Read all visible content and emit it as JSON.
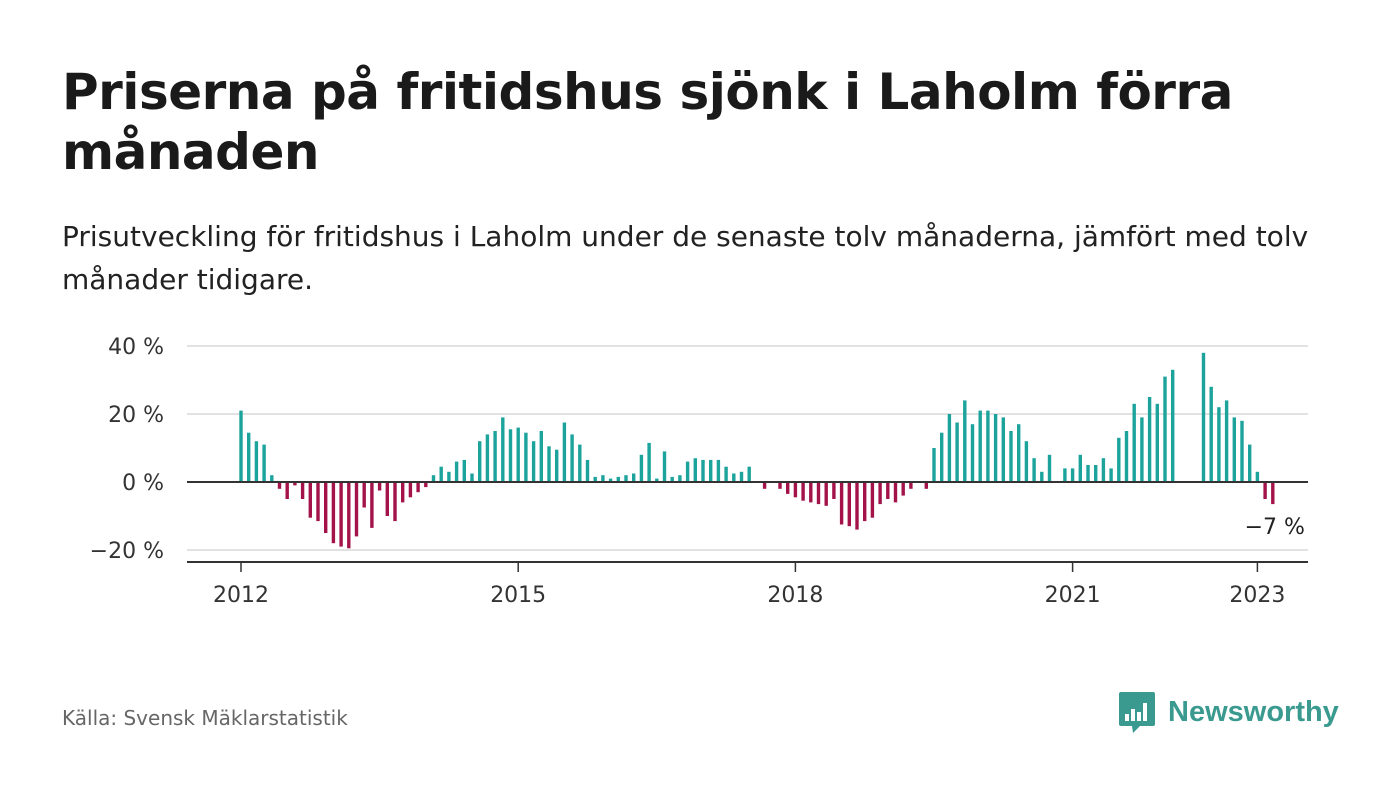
{
  "header": {
    "title": "Priserna på fritidshus sjönk i Laholm förra månaden",
    "subtitle": "Prisutveckling för fritidshus i Laholm under de senaste tolv månaderna, jämfört med tolv månader tidigare."
  },
  "footer": {
    "source": "Källa: Svensk Mäklarstatistik",
    "brand": "Newsworthy"
  },
  "colors": {
    "positive": "#1ba39c",
    "negative": "#a3134a",
    "grid": "#d9d9d9",
    "axis": "#333333",
    "brand": "#3a9a8f"
  },
  "chart_data": {
    "type": "bar",
    "ylim": [
      -23,
      40
    ],
    "yticks": [
      40,
      20,
      0,
      -20
    ],
    "ytick_labels": [
      "40 %",
      "20 %",
      "0 %",
      "−20 %"
    ],
    "xticks": [
      {
        "index": 0,
        "label": "2012"
      },
      {
        "index": 36,
        "label": "2015"
      },
      {
        "index": 72,
        "label": "2018"
      },
      {
        "index": 108,
        "label": "2021"
      },
      {
        "index": 132,
        "label": "2023"
      }
    ],
    "last_label": "−7 %",
    "grid": true,
    "legend": "none",
    "start": "2012-01",
    "values": [
      21,
      14.5,
      12,
      11,
      2,
      -2,
      -5,
      -1,
      -5,
      -10.5,
      -11.5,
      -15,
      -18,
      -19,
      -19.5,
      -16,
      -7.5,
      -13.5,
      -2.5,
      -10,
      -11.5,
      -6,
      -4.5,
      -3,
      -1.5,
      2,
      4.5,
      3,
      6,
      6.5,
      2.5,
      12,
      14,
      15,
      19,
      15.5,
      16,
      14.5,
      12,
      15,
      10.5,
      9.5,
      17.5,
      14,
      11,
      6.5,
      1.5,
      2,
      1,
      1.5,
      2,
      2.5,
      8,
      11.5,
      1,
      9,
      1.5,
      2,
      6,
      7,
      6.5,
      6.5,
      6.5,
      4.5,
      2.5,
      3,
      4.5,
      null,
      -2,
      null,
      -2,
      -3.5,
      -4.5,
      -5.5,
      -6,
      -6.5,
      -7,
      -5,
      -12.5,
      -13,
      -14,
      -11.5,
      -10.5,
      -6.5,
      -5,
      -6,
      -4,
      -2,
      null,
      -2,
      10,
      14.5,
      20,
      17.5,
      24,
      17,
      21,
      21,
      20,
      19,
      15,
      17,
      12,
      7,
      3,
      8,
      null,
      4,
      4,
      8,
      5,
      5,
      7,
      4,
      13,
      15,
      23,
      19,
      25,
      23,
      31,
      33,
      null,
      null,
      null,
      38,
      28,
      22,
      24,
      19,
      18,
      11,
      3,
      -5,
      -6.5
    ]
  }
}
